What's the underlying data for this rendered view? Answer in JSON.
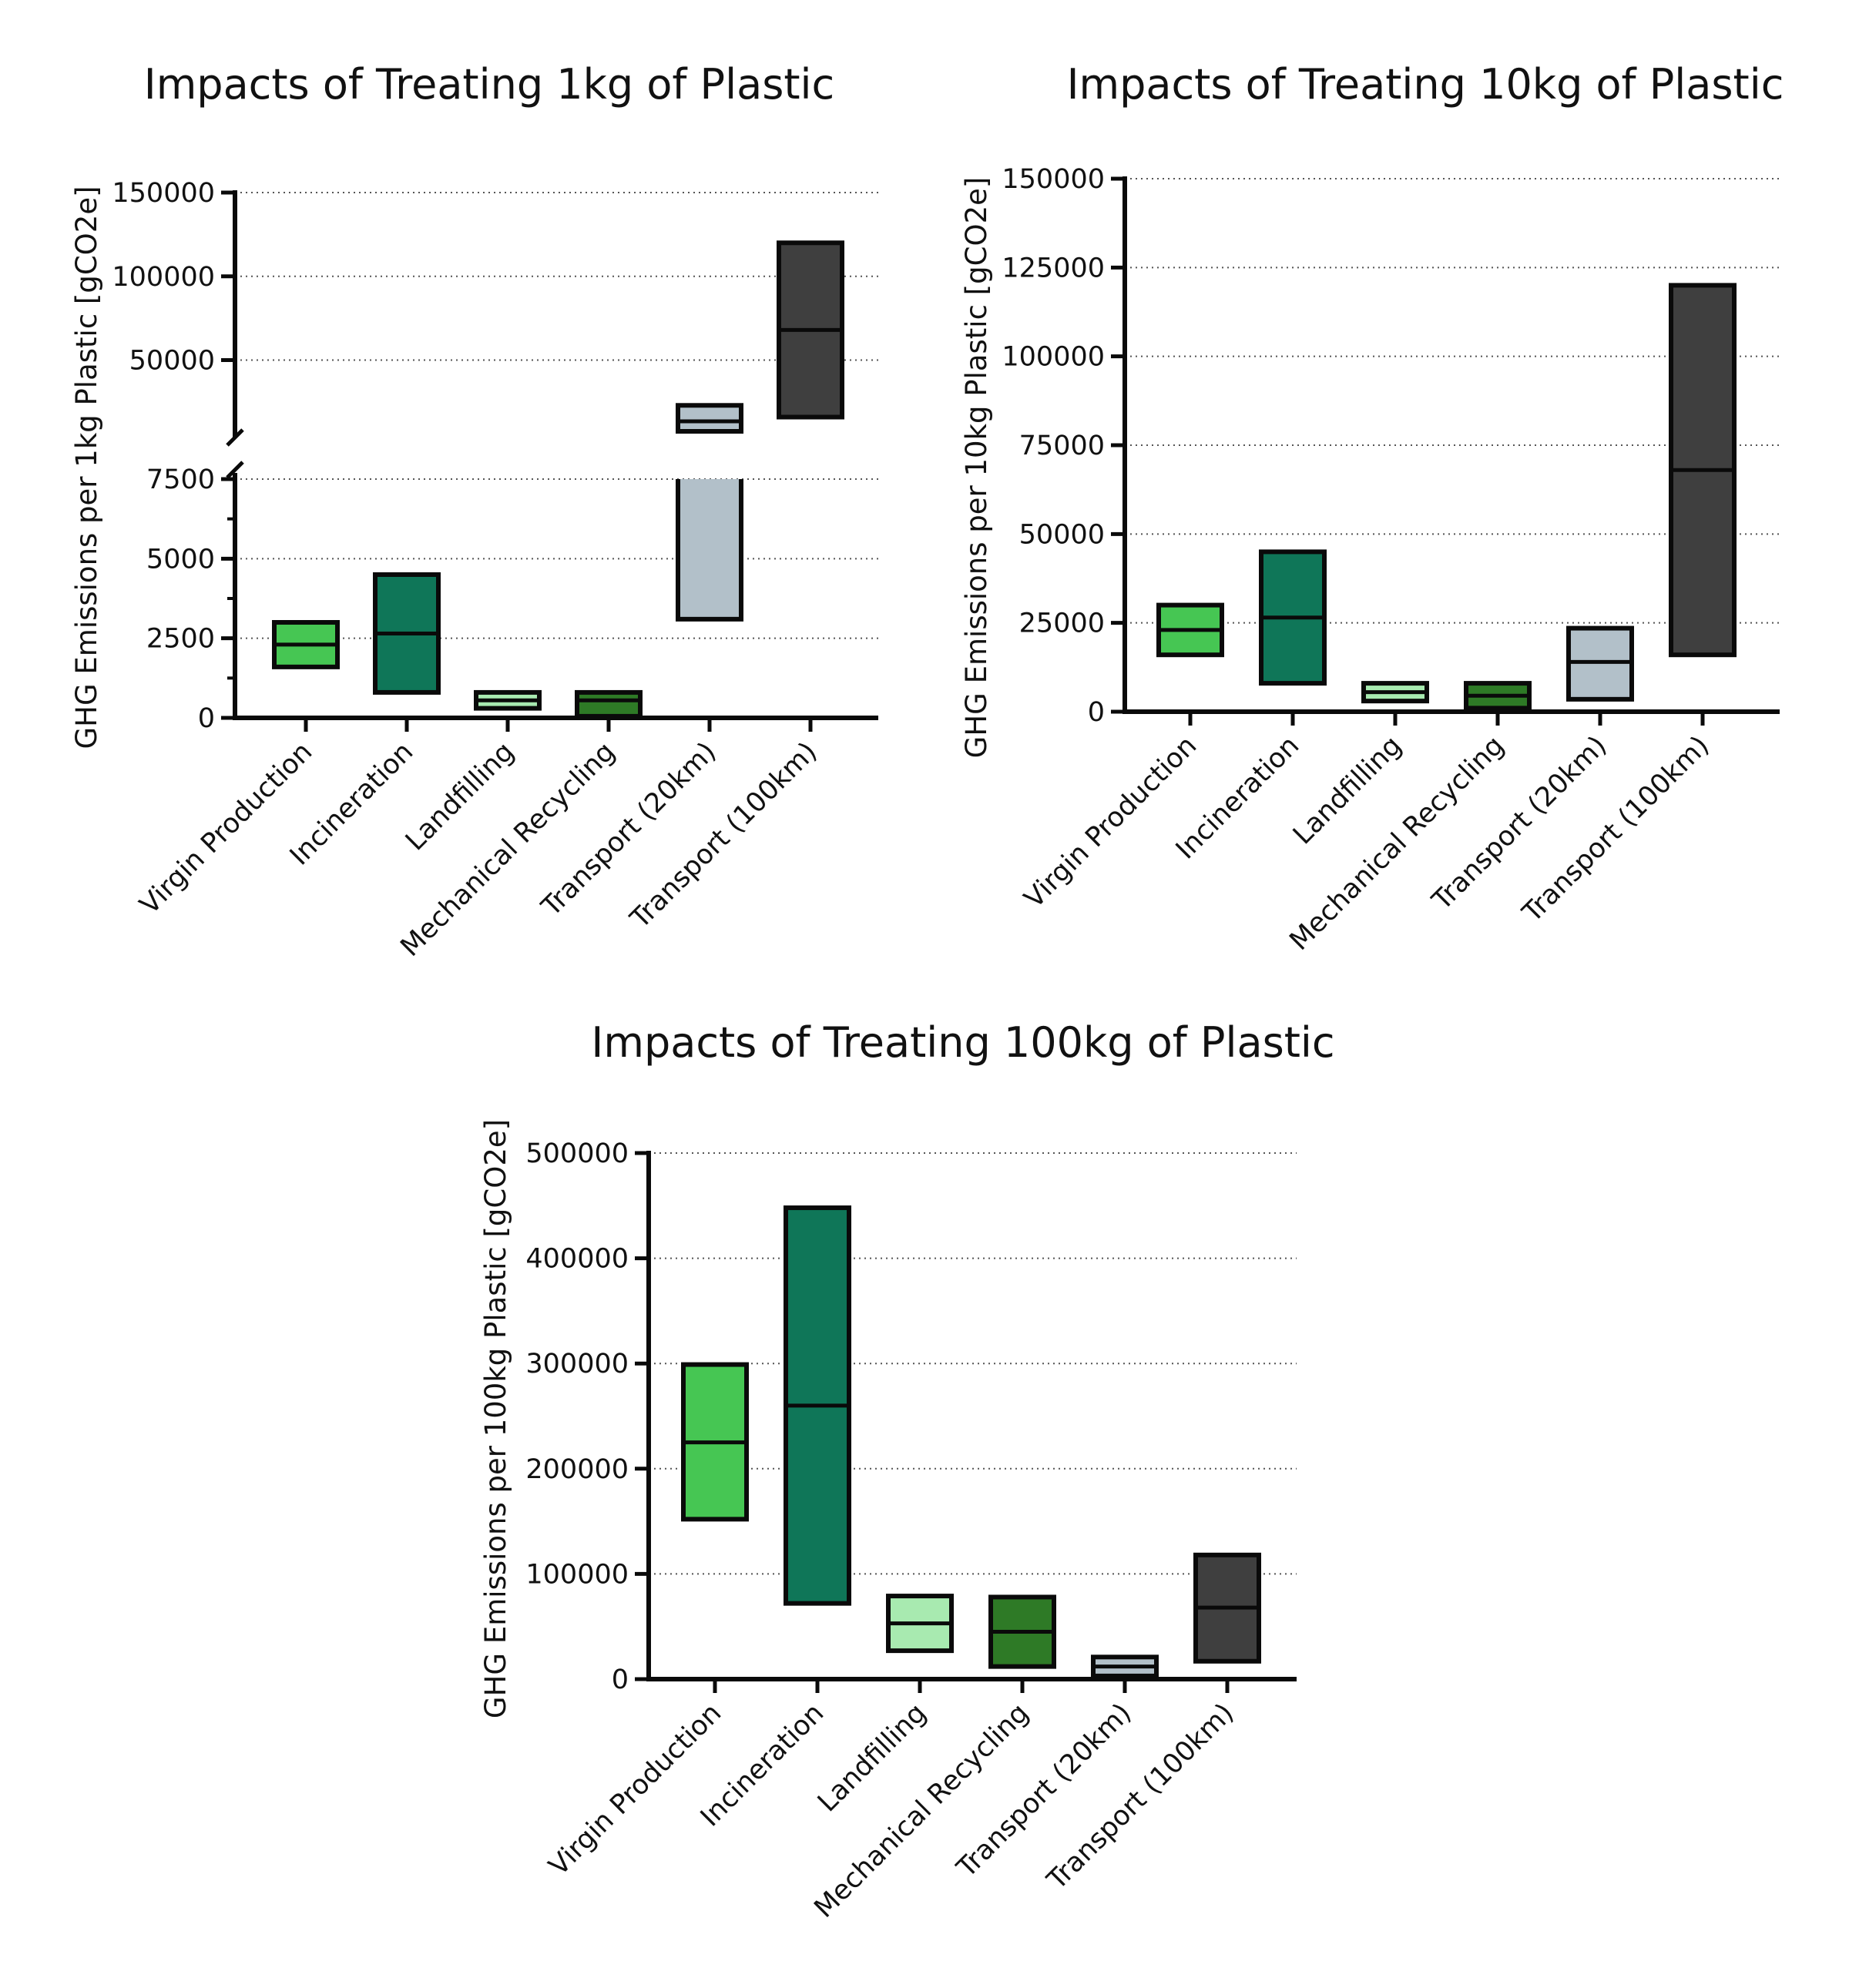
{
  "colors": {
    "Virgin Production": "#46c653",
    "Incineration": "#0f7658",
    "Landfilling": "#a8eab0",
    "Mechanical Recycling": "#2e7a26",
    "Transport (20km)": "#b2c0c9",
    "Transport (100km)": "#3f3f3f",
    "outline": "#0a0a0a",
    "grid": "#555555"
  },
  "chart_data": [
    {
      "type": "floating-bar",
      "title": "Impacts of Treating 1kg of Plastic",
      "ylabel": "GHG Emissions per 1kg Plastic [gCO2e]",
      "xlabel": "",
      "categories": [
        "Virgin Production",
        "Incineration",
        "Landfilling",
        "Mechanical Recycling",
        "Transport (20km)",
        "Transport (100km)"
      ],
      "series": [
        {
          "min": 1600,
          "mid": 2300,
          "max": 3000
        },
        {
          "min": 800,
          "mid": 2650,
          "max": 4500
        },
        {
          "min": 300,
          "mid": 550,
          "max": 800
        },
        {
          "min": 50,
          "mid": 550,
          "max": 800
        },
        {
          "min": 3100,
          "mid": 13500,
          "max": 23000
        },
        {
          "min": 16000,
          "mid": 68000,
          "max": 120000
        }
      ],
      "broken_axis": {
        "lower": [
          0,
          7500
        ],
        "upper": [
          7500,
          150000
        ]
      },
      "yticks_lower": [
        "0",
        "2500",
        "5000",
        "7500"
      ],
      "yticks_upper": [
        "50000",
        "100000",
        "150000"
      ],
      "grid": "dotted-horizontal"
    },
    {
      "type": "floating-bar",
      "title": "Impacts of Treating 10kg of Plastic",
      "ylabel": "GHG Emissions per 10kg Plastic [gCO2e]",
      "xlabel": "",
      "categories": [
        "Virgin Production",
        "Incineration",
        "Landfilling",
        "Mechanical Recycling",
        "Transport (20km)",
        "Transport (100km)"
      ],
      "series": [
        {
          "min": 16000,
          "mid": 23000,
          "max": 30000
        },
        {
          "min": 8000,
          "mid": 26500,
          "max": 45000
        },
        {
          "min": 3000,
          "mid": 5500,
          "max": 8000
        },
        {
          "min": 1000,
          "mid": 4500,
          "max": 8000
        },
        {
          "min": 3500,
          "mid": 14000,
          "max": 23500
        },
        {
          "min": 16000,
          "mid": 68000,
          "max": 120000
        }
      ],
      "ylim": [
        0,
        150000
      ],
      "yticks": [
        "0",
        "25000",
        "50000",
        "75000",
        "100000",
        "125000",
        "150000"
      ],
      "grid": "dotted-horizontal"
    },
    {
      "type": "floating-bar",
      "title": "Impacts of Treating 100kg of Plastic",
      "ylabel": "GHG Emissions per 100kg Plastic [gCO2e]",
      "xlabel": "",
      "categories": [
        "Virgin Production",
        "Incineration",
        "Landfilling",
        "Mechanical Recycling",
        "Transport (20km)",
        "Transport (100km)"
      ],
      "series": [
        {
          "min": 152000,
          "mid": 225000,
          "max": 299000
        },
        {
          "min": 72000,
          "mid": 260000,
          "max": 448000
        },
        {
          "min": 27000,
          "mid": 53000,
          "max": 79000
        },
        {
          "min": 12000,
          "mid": 45000,
          "max": 78000
        },
        {
          "min": 3000,
          "mid": 12000,
          "max": 21000
        },
        {
          "min": 17000,
          "mid": 68000,
          "max": 118000
        }
      ],
      "ylim": [
        0,
        500000
      ],
      "yticks": [
        "0",
        "100000",
        "200000",
        "300000",
        "400000",
        "500000"
      ],
      "grid": "dotted-horizontal"
    }
  ]
}
